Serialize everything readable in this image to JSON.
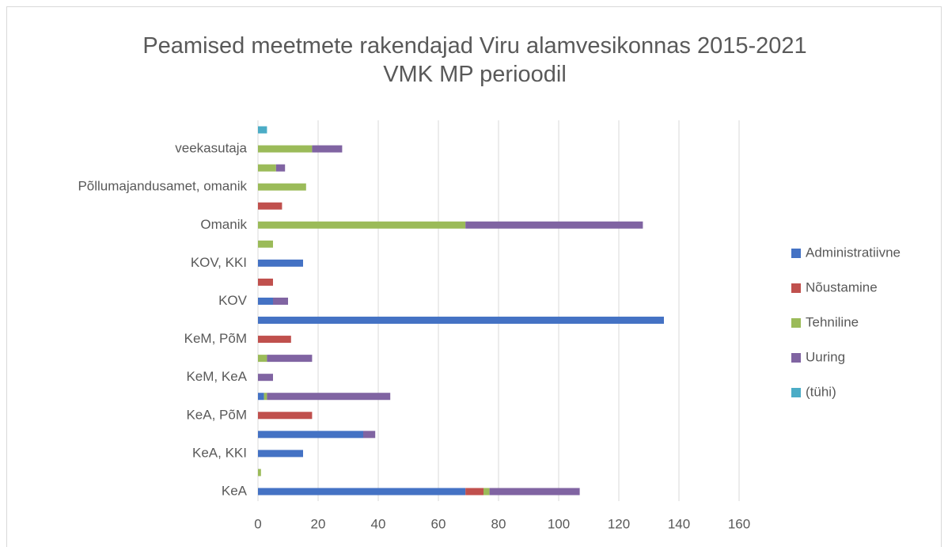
{
  "chart_data": {
    "type": "stacked_barh",
    "title": "Peamised meetmete rakendajad Viru alamvesikonnas 2015-2021 VMK MP perioodil",
    "categories": [
      "KeA",
      null,
      "KeA, KKI",
      null,
      "KeA, PõM",
      null,
      "KeM, KeA",
      null,
      "KeM, PõM",
      null,
      "KOV",
      null,
      "KOV, KKI",
      null,
      "Omanik",
      null,
      "Põllumajandusamet, omanik",
      null,
      "veekasutaja",
      null
    ],
    "series": [
      {
        "name": "Administratiivne",
        "color": "#4472c4",
        "values": [
          69,
          null,
          15,
          35,
          null,
          2,
          null,
          null,
          null,
          135,
          5,
          null,
          15,
          null,
          null,
          null,
          null,
          null,
          null,
          null
        ]
      },
      {
        "name": "Nõustamine",
        "color": "#c0504d",
        "values": [
          6,
          null,
          null,
          null,
          18,
          null,
          null,
          null,
          11,
          null,
          null,
          5,
          null,
          null,
          null,
          8,
          null,
          null,
          null,
          null
        ]
      },
      {
        "name": "Tehniline",
        "color": "#9bbb59",
        "values": [
          2,
          1,
          null,
          null,
          null,
          1,
          null,
          3,
          null,
          null,
          null,
          null,
          null,
          5,
          69,
          null,
          16,
          6,
          18,
          null
        ]
      },
      {
        "name": "Uuring",
        "color": "#8064a2",
        "values": [
          30,
          null,
          null,
          4,
          null,
          41,
          5,
          15,
          null,
          null,
          5,
          null,
          null,
          null,
          59,
          null,
          null,
          3,
          10,
          null
        ]
      },
      {
        "name": "(tühi)",
        "color": "#4bacc6",
        "values": [
          null,
          null,
          null,
          null,
          null,
          null,
          null,
          null,
          null,
          null,
          null,
          null,
          null,
          null,
          null,
          null,
          null,
          null,
          null,
          3
        ]
      }
    ],
    "xlim": [
      0,
      160
    ],
    "xticks": [
      0,
      20,
      40,
      60,
      80,
      100,
      120,
      140,
      160
    ],
    "grid": true,
    "legend": "right"
  }
}
